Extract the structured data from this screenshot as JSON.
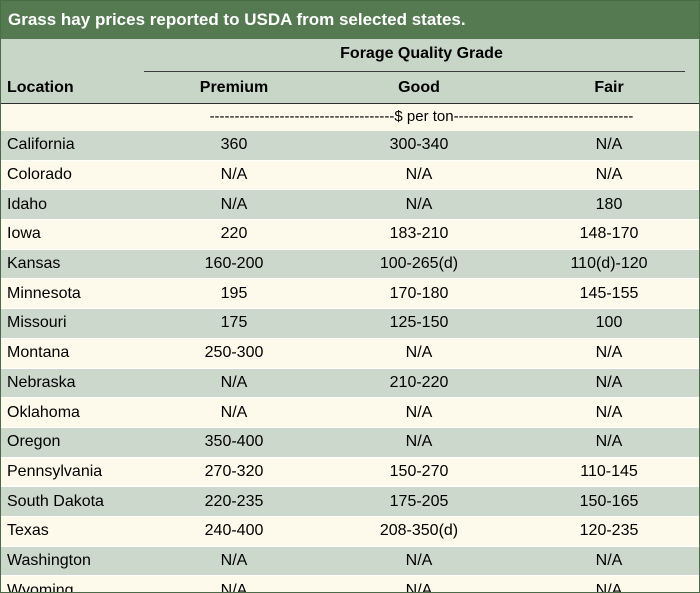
{
  "title": "Grass hay prices reported to USDA from selected states.",
  "header": {
    "group": "Forage Quality Grade",
    "location": "Location",
    "columns": [
      "Premium",
      "Good",
      "Fair"
    ]
  },
  "unit": "-------------------------------------$ per ton------------------------------------",
  "rows": [
    {
      "location": "California",
      "premium": "360",
      "good": "300-340",
      "fair": "N/A"
    },
    {
      "location": "Colorado",
      "premium": "N/A",
      "good": "N/A",
      "fair": "N/A"
    },
    {
      "location": "Idaho",
      "premium": "N/A",
      "good": "N/A",
      "fair": "180"
    },
    {
      "location": "Iowa",
      "premium": "220",
      "good": "183-210",
      "fair": "148-170"
    },
    {
      "location": "Kansas",
      "premium": "160-200",
      "good": "100-265(d)",
      "fair": "110(d)-120"
    },
    {
      "location": "Minnesota",
      "premium": "195",
      "good": "170-180",
      "fair": "145-155"
    },
    {
      "location": "Missouri",
      "premium": "175",
      "good": "125-150",
      "fair": "100"
    },
    {
      "location": "Montana",
      "premium": "250-300",
      "good": "N/A",
      "fair": "N/A"
    },
    {
      "location": "Nebraska",
      "premium": "N/A",
      "good": "210-220",
      "fair": "N/A"
    },
    {
      "location": "Oklahoma",
      "premium": "N/A",
      "good": "N/A",
      "fair": "N/A"
    },
    {
      "location": "Oregon",
      "premium": "350-400",
      "good": "N/A",
      "fair": "N/A"
    },
    {
      "location": "Pennsylvania",
      "premium": "270-320",
      "good": "150-270",
      "fair": "110-145"
    },
    {
      "location": "South Dakota",
      "premium": "220-235",
      "good": "175-205",
      "fair": "150-165"
    },
    {
      "location": "Texas",
      "premium": "240-400",
      "good": "208-350(d)",
      "fair": "120-235"
    },
    {
      "location": "Washington",
      "premium": "N/A",
      "good": "N/A",
      "fair": "N/A"
    },
    {
      "location": "Wyoming",
      "premium": "N/A",
      "good": "N/A",
      "fair": "N/A"
    }
  ],
  "colors": {
    "title_bg": "#557a52",
    "header_bg": "#c8d6c8",
    "band_bg": "#ccd8cb",
    "plain_bg": "#fdfaeb"
  }
}
